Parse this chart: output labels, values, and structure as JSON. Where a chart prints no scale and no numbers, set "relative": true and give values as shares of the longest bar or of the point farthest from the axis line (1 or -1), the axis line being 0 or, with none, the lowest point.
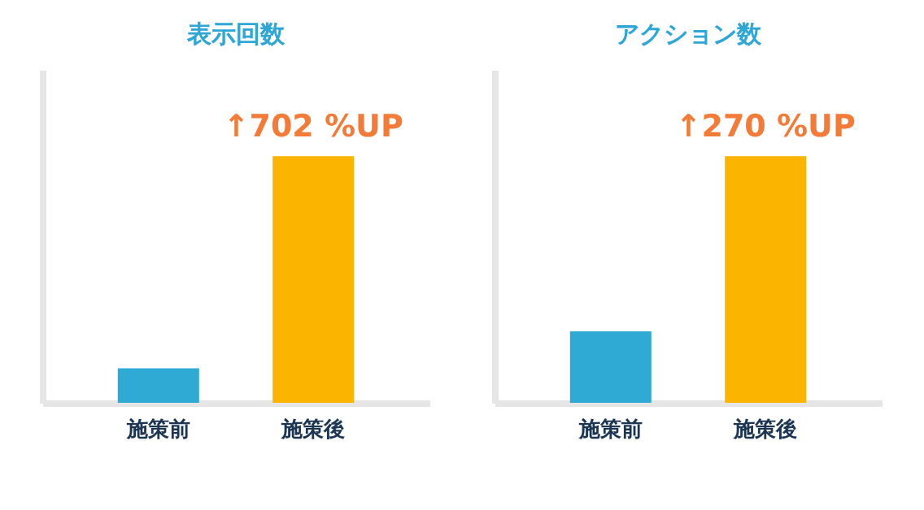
{
  "chart_data": [
    {
      "type": "bar",
      "title": "表示回数",
      "categories": [
        "施策前",
        "施策後"
      ],
      "values": [
        0.14,
        1
      ],
      "colors": [
        "#2eaad4",
        "#fbb400"
      ],
      "relative": true,
      "annotations": [
        {
          "text": "↑702 %UP",
          "x": "施策後",
          "y": 1
        }
      ]
    },
    {
      "type": "bar",
      "title": "アクション数",
      "categories": [
        "施策前",
        "施策後"
      ],
      "values": [
        0.29,
        1
      ],
      "colors": [
        "#2eaad4",
        "#fbb400"
      ],
      "relative": true,
      "annotations": [
        {
          "text": "↑270 %UP",
          "x": "施策後",
          "y": 1
        }
      ]
    }
  ]
}
